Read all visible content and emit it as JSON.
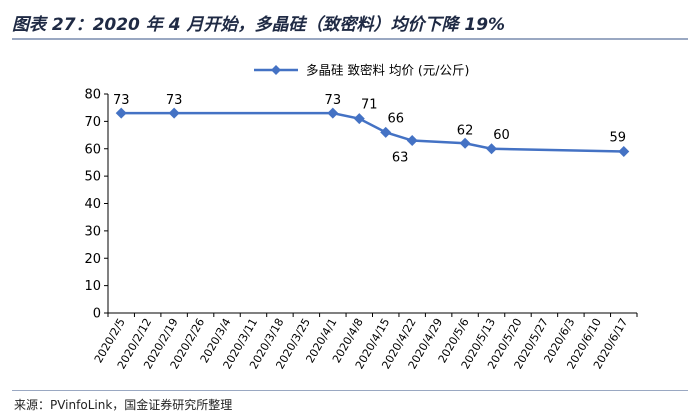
{
  "header": {
    "title": "图表 27：2020 年 4 月开始，多晶硅（致密料）均价下降 19%"
  },
  "footer": {
    "source": "来源：PVinfoLink，国金证券研究所整理"
  },
  "colors": {
    "series": "#4472c4",
    "axis": "#000000",
    "title": "#1f2a44"
  },
  "chart_data": {
    "type": "line",
    "title": "",
    "xlabel": "",
    "ylabel": "",
    "ylim": [
      0,
      80
    ],
    "yticks": [
      0,
      10,
      20,
      30,
      40,
      50,
      60,
      70,
      80
    ],
    "grid": false,
    "legend_position": "top-right",
    "categories": [
      "2020/2/5",
      "2020/2/12",
      "2020/2/19",
      "2020/2/26",
      "2020/3/4",
      "2020/3/11",
      "2020/3/18",
      "2020/3/25",
      "2020/4/1",
      "2020/4/8",
      "2020/4/15",
      "2020/4/22",
      "2020/4/29",
      "2020/5/6",
      "2020/5/13",
      "2020/5/20",
      "2020/5/27",
      "2020/6/3",
      "2020/6/10",
      "2020/6/17"
    ],
    "series": [
      {
        "name": "多晶硅 致密料 均价 (元/公斤)",
        "points": [
          {
            "x": "2020/2/5",
            "y": 73,
            "label": "73",
            "label_pos": "above"
          },
          {
            "x": "2020/2/19",
            "y": 73,
            "label": "73",
            "label_pos": "above"
          },
          {
            "x": "2020/4/1",
            "y": 73,
            "label": "73",
            "label_pos": "above"
          },
          {
            "x": "2020/4/8",
            "y": 71,
            "label": "71",
            "label_pos": "above-right"
          },
          {
            "x": "2020/4/15",
            "y": 66,
            "label": "66",
            "label_pos": "above-right"
          },
          {
            "x": "2020/4/22",
            "y": 63,
            "label": "63",
            "label_pos": "below-left"
          },
          {
            "x": "2020/5/6",
            "y": 62,
            "label": "62",
            "label_pos": "above"
          },
          {
            "x": "2020/5/13",
            "y": 60,
            "label": "60",
            "label_pos": "above-right"
          },
          {
            "x": "2020/6/17",
            "y": 59,
            "label": "59",
            "label_pos": "above-left"
          }
        ]
      }
    ]
  }
}
